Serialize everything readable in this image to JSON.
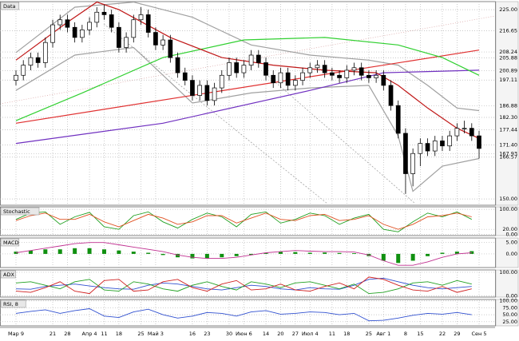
{
  "chart_data": [
    {
      "type": "candlestick",
      "title": "Data",
      "categories": [
        "Мар 9",
        null,
        null,
        null,
        null,
        "21",
        null,
        "28",
        null,
        null,
        "Апр 4",
        null,
        "11",
        null,
        "18",
        null,
        null,
        "25",
        null,
        "Май 3",
        null,
        null,
        null,
        null,
        "16",
        null,
        "23",
        null,
        null,
        "30",
        null,
        "Июн 6",
        null,
        null,
        "14",
        null,
        "20",
        null,
        "27",
        null,
        "Июл 4",
        null,
        null,
        "11",
        null,
        "18",
        null,
        null,
        "25",
        null,
        "Авг 1",
        null,
        null,
        "8",
        null,
        "15",
        null,
        null,
        "22",
        null,
        "29",
        null,
        null,
        "Сен 5"
      ],
      "ohlc": [
        [
          197,
          201,
          195,
          199
        ],
        [
          199,
          205,
          197,
          203
        ],
        [
          203,
          208,
          201,
          206
        ],
        [
          206,
          208,
          202,
          204
        ],
        [
          204,
          214,
          202,
          212
        ],
        [
          212,
          221,
          210,
          219
        ],
        [
          219,
          223,
          217,
          221
        ],
        [
          221,
          223,
          216,
          218
        ],
        [
          218,
          220,
          212,
          214
        ],
        [
          214,
          219,
          212,
          217
        ],
        [
          217,
          222,
          215,
          220
        ],
        [
          220,
          226,
          218,
          224
        ],
        [
          224,
          227,
          221,
          223
        ],
        [
          223,
          225,
          216,
          218
        ],
        [
          218,
          220,
          208,
          210
        ],
        [
          210,
          216,
          208,
          214
        ],
        [
          214,
          223,
          212,
          221
        ],
        [
          221,
          226,
          219,
          223
        ],
        [
          223,
          225,
          214,
          216
        ],
        [
          216,
          218,
          209,
          211
        ],
        [
          211,
          215,
          209,
          213
        ],
        [
          213,
          215,
          204,
          206
        ],
        [
          206,
          208,
          198,
          200
        ],
        [
          200,
          202,
          195,
          197
        ],
        [
          197,
          199,
          189,
          191
        ],
        [
          191,
          197,
          189,
          195
        ],
        [
          195,
          197,
          187,
          189
        ],
        [
          189,
          196,
          187,
          194
        ],
        [
          194,
          201,
          192,
          199
        ],
        [
          199,
          206,
          197,
          204
        ],
        [
          204,
          206,
          198,
          200
        ],
        [
          200,
          205,
          198,
          203
        ],
        [
          203,
          209,
          201,
          207
        ],
        [
          207,
          209,
          202,
          204
        ],
        [
          204,
          206,
          197,
          199
        ],
        [
          199,
          201,
          194,
          196
        ],
        [
          196,
          202,
          194,
          200
        ],
        [
          200,
          202,
          193,
          195
        ],
        [
          195,
          199,
          193,
          197
        ],
        [
          197,
          202,
          195,
          200
        ],
        [
          200,
          204,
          198,
          202
        ],
        [
          202,
          205,
          200,
          203
        ],
        [
          203,
          205,
          198,
          200
        ],
        [
          200,
          202,
          197,
          199
        ],
        [
          199,
          201,
          196,
          198
        ],
        [
          198,
          203,
          196,
          201
        ],
        [
          201,
          204,
          199,
          202
        ],
        [
          202,
          204,
          197,
          199
        ],
        [
          199,
          201,
          196,
          198
        ],
        [
          198,
          201,
          196,
          199
        ],
        [
          199,
          201,
          193,
          195
        ],
        [
          195,
          197,
          185,
          187
        ],
        [
          187,
          189,
          174,
          176
        ],
        [
          176,
          178,
          152,
          160
        ],
        [
          160,
          170,
          155,
          168
        ],
        [
          168,
          174,
          163,
          172
        ],
        [
          172,
          174,
          167,
          169
        ],
        [
          169,
          175,
          167,
          173
        ],
        [
          173,
          175,
          169,
          171
        ],
        [
          171,
          177,
          169,
          175
        ],
        [
          175,
          180,
          173,
          178
        ],
        [
          178,
          181,
          176,
          178
        ],
        [
          178,
          180,
          173,
          175
        ],
        [
          175,
          177,
          166,
          170
        ]
      ],
      "ylim": [
        147.5,
        228.2
      ],
      "yticks": [
        {
          "value": 225,
          "label": "225.00"
        },
        {
          "value": 216.65,
          "label": "216.65"
        },
        {
          "value": 208.24,
          "label": "208.24"
        },
        {
          "value": 205.88,
          "label": "205.88"
        },
        {
          "value": 200.89,
          "label": "200.89"
        },
        {
          "value": 197.11,
          "label": "197.11"
        },
        {
          "value": 186.88,
          "label": "186.88"
        },
        {
          "value": 182.3,
          "label": "182.30"
        },
        {
          "value": 177.44,
          "label": "177.44"
        },
        {
          "value": 171.4,
          "label": "171.40"
        },
        {
          "value": 167.93,
          "label": "167.93"
        },
        {
          "value": 166.57,
          "label": "166.57"
        },
        {
          "value": 150,
          "label": "150.00"
        }
      ],
      "grid": true,
      "overlays": [
        {
          "color": "#a0a0a0",
          "x": [
            0,
            8,
            16,
            24,
            32,
            40,
            48,
            52,
            56,
            60,
            63
          ],
          "values": [
            208,
            226,
            228,
            222,
            211,
            207,
            205,
            203,
            195,
            186,
            185
          ]
        },
        {
          "color": "#a0a0a0",
          "x": [
            0,
            8,
            16,
            24,
            32,
            40,
            48,
            52,
            54,
            58,
            63
          ],
          "values": [
            193,
            207,
            210,
            188,
            192,
            194,
            195,
            175,
            153,
            163,
            166
          ]
        },
        {
          "color": "#e03030",
          "x": [
            0,
            63
          ],
          "values": [
            180,
            209
          ]
        },
        {
          "color": "#7030c0",
          "x": [
            0,
            20,
            40,
            50,
            63
          ],
          "values": [
            172,
            180,
            193,
            200,
            201
          ]
        },
        {
          "color": "#30d030",
          "x": [
            0,
            9,
            20,
            31,
            42,
            52,
            58,
            63
          ],
          "values": [
            181,
            192,
            206,
            213,
            214,
            211,
            206,
            199
          ]
        },
        {
          "color": "#c01818",
          "x": [
            0,
            7,
            11,
            14,
            21,
            28,
            35,
            42,
            49,
            52,
            56,
            60,
            63
          ],
          "values": [
            205,
            220,
            228,
            225,
            214,
            206,
            203,
            201,
            200,
            195,
            186,
            178,
            174
          ]
        }
      ]
    },
    {
      "type": "line",
      "title": "Stochastic",
      "ylim": [
        -5,
        110
      ],
      "yticks": [
        {
          "value": 100,
          "label": "100.00"
        },
        {
          "value": 20,
          "label": "20.00"
        },
        {
          "value": 0,
          "label": "0.00"
        }
      ],
      "x": [
        0,
        2,
        4,
        6,
        8,
        10,
        12,
        14,
        16,
        18,
        20,
        22,
        24,
        26,
        28,
        30,
        32,
        34,
        36,
        38,
        40,
        42,
        44,
        46,
        48,
        50,
        52,
        54,
        56,
        58,
        60,
        62
      ],
      "series": [
        {
          "color": "#20a020",
          "values": [
            60,
            85,
            90,
            40,
            70,
            88,
            30,
            20,
            75,
            90,
            50,
            25,
            60,
            85,
            70,
            30,
            80,
            90,
            45,
            60,
            85,
            75,
            40,
            65,
            80,
            20,
            10,
            50,
            85,
            70,
            90,
            60
          ]
        },
        {
          "color": "#e05020",
          "values": [
            55,
            75,
            85,
            60,
            60,
            80,
            50,
            30,
            55,
            80,
            65,
            40,
            50,
            75,
            75,
            45,
            65,
            85,
            60,
            55,
            75,
            80,
            55,
            60,
            75,
            40,
            20,
            40,
            70,
            75,
            85,
            70
          ]
        }
      ]
    },
    {
      "type": "line",
      "title": "MACD",
      "ylim": [
        -6,
        7
      ],
      "yticks": [
        {
          "value": 5,
          "label": "5.00"
        },
        {
          "value": 0,
          "label": "0.00"
        }
      ],
      "x": [
        0,
        2,
        4,
        6,
        8,
        10,
        12,
        14,
        16,
        18,
        20,
        22,
        24,
        26,
        28,
        30,
        32,
        34,
        36,
        38,
        40,
        42,
        44,
        46,
        48,
        50,
        52,
        54,
        56,
        58,
        60,
        62
      ],
      "series": [
        {
          "color": "#109010",
          "style": "bar",
          "values": [
            1,
            1.5,
            2,
            2,
            2.5,
            2.5,
            2,
            1.5,
            1,
            0.5,
            -0.5,
            -1.5,
            -2,
            -2,
            -1.5,
            -1,
            -0.5,
            0.5,
            1,
            0.8,
            0.5,
            0.6,
            0.4,
            0.3,
            -1,
            -3,
            -4,
            -3,
            -1,
            0.5,
            1,
            1.2
          ]
        },
        {
          "color": "#c03090",
          "values": [
            0.5,
            1.5,
            2.5,
            3.5,
            4.5,
            5,
            5,
            4,
            3,
            2,
            1,
            -0.5,
            -1.5,
            -2,
            -2,
            -1.5,
            -0.5,
            0.5,
            1,
            1.5,
            1.2,
            1,
            1,
            0.8,
            -0.5,
            -3,
            -5,
            -5,
            -3.5,
            -1.5,
            0,
            0.5
          ]
        }
      ]
    },
    {
      "type": "line",
      "title": "ADX",
      "ylim": [
        -5,
        110
      ],
      "yticks": [
        {
          "value": 100,
          "label": "100.00"
        },
        {
          "value": 0,
          "label": "0.00"
        }
      ],
      "x": [
        0,
        2,
        4,
        6,
        8,
        10,
        12,
        14,
        16,
        18,
        20,
        22,
        24,
        26,
        28,
        30,
        32,
        34,
        36,
        38,
        40,
        42,
        44,
        46,
        48,
        50,
        52,
        54,
        56,
        58,
        60,
        62
      ],
      "series": [
        {
          "color": "#3050d0",
          "values": [
            30,
            28,
            40,
            45,
            50,
            42,
            35,
            30,
            28,
            45,
            55,
            50,
            40,
            30,
            25,
            35,
            45,
            40,
            30,
            25,
            35,
            30,
            28,
            45,
            70,
            75,
            60,
            45,
            35,
            30,
            35,
            40
          ]
        },
        {
          "color": "#20a020",
          "values": [
            55,
            60,
            45,
            30,
            60,
            70,
            25,
            20,
            60,
            50,
            30,
            20,
            45,
            60,
            40,
            25,
            60,
            50,
            35,
            55,
            60,
            45,
            30,
            50,
            10,
            15,
            30,
            55,
            60,
            45,
            65,
            50
          ]
        },
        {
          "color": "#d02020",
          "values": [
            20,
            15,
            35,
            60,
            20,
            10,
            65,
            70,
            20,
            25,
            60,
            70,
            35,
            20,
            50,
            65,
            25,
            30,
            50,
            25,
            20,
            40,
            55,
            30,
            80,
            70,
            45,
            25,
            20,
            40,
            15,
            30
          ]
        }
      ]
    },
    {
      "type": "line",
      "title": "RSI, 8",
      "ylim": [
        10,
        105
      ],
      "yticks": [
        {
          "value": 100,
          "label": "100.00"
        },
        {
          "value": 75,
          "label": "75.00"
        },
        {
          "value": 50,
          "label": "50.00"
        },
        {
          "value": 25,
          "label": "25.00"
        }
      ],
      "x": [
        0,
        2,
        4,
        6,
        8,
        10,
        12,
        14,
        16,
        18,
        20,
        22,
        24,
        26,
        28,
        30,
        32,
        34,
        36,
        38,
        40,
        42,
        44,
        46,
        48,
        50,
        52,
        54,
        56,
        58,
        60,
        62
      ],
      "series": [
        {
          "color": "#3050d0",
          "values": [
            55,
            62,
            68,
            55,
            65,
            72,
            45,
            40,
            60,
            70,
            50,
            38,
            45,
            58,
            55,
            45,
            60,
            65,
            52,
            55,
            60,
            58,
            50,
            55,
            28,
            30,
            38,
            48,
            55,
            52,
            58,
            50
          ]
        }
      ]
    }
  ]
}
